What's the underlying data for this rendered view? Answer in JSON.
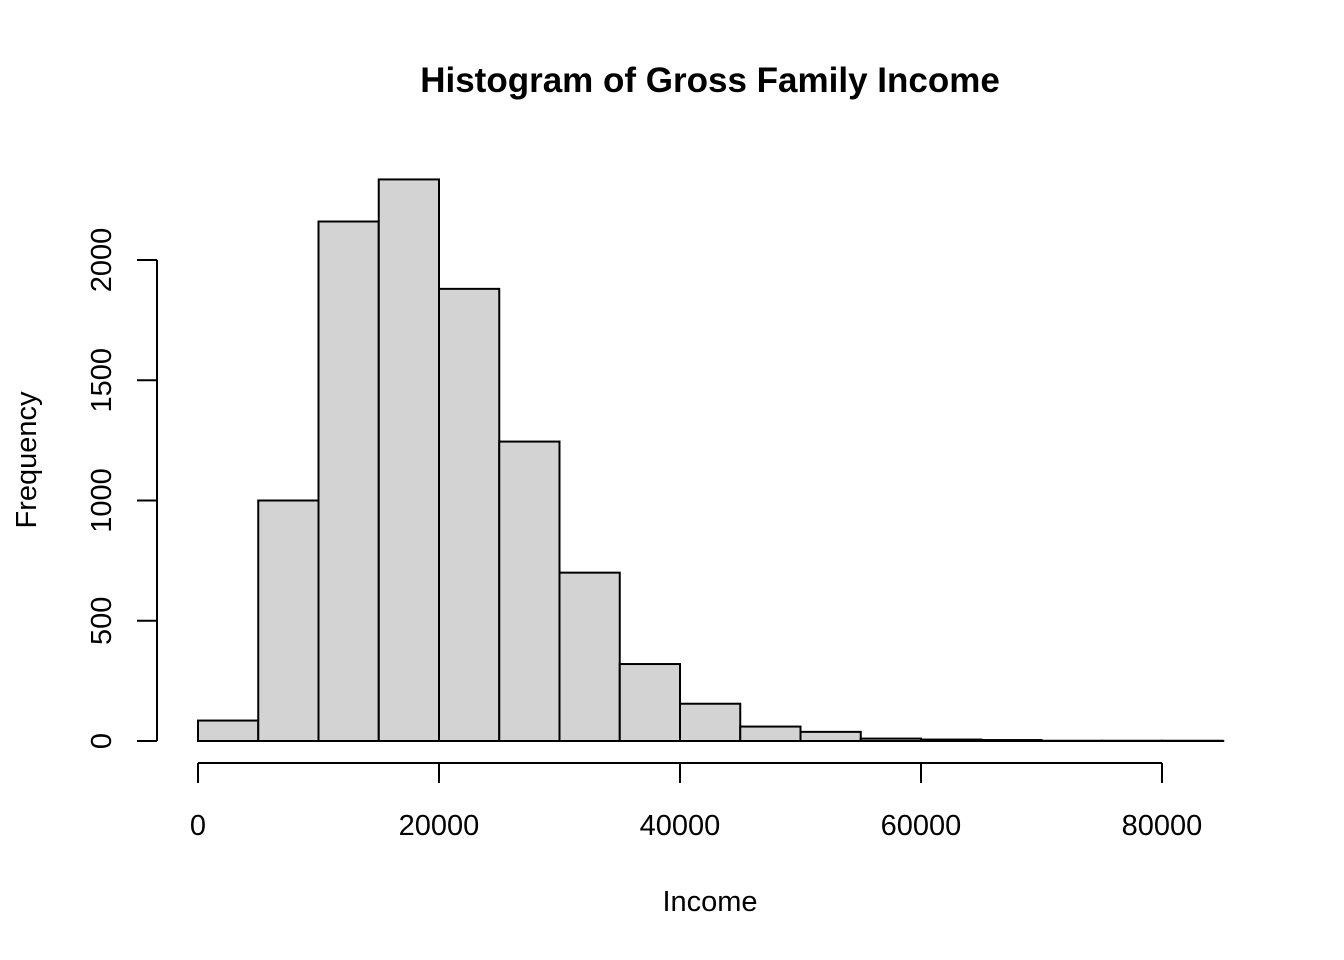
{
  "chart_data": {
    "type": "bar",
    "title": "Histogram of Gross Family Income",
    "xlabel": "Income",
    "ylabel": "Frequency",
    "bin_width": 5000,
    "bins": [
      {
        "start": 0,
        "end": 5000,
        "value": 85
      },
      {
        "start": 5000,
        "end": 10000,
        "value": 1000
      },
      {
        "start": 10000,
        "end": 15000,
        "value": 2160
      },
      {
        "start": 15000,
        "end": 20000,
        "value": 2335
      },
      {
        "start": 20000,
        "end": 25000,
        "value": 1880
      },
      {
        "start": 25000,
        "end": 30000,
        "value": 1245
      },
      {
        "start": 30000,
        "end": 35000,
        "value": 700
      },
      {
        "start": 35000,
        "end": 40000,
        "value": 320
      },
      {
        "start": 40000,
        "end": 45000,
        "value": 155
      },
      {
        "start": 45000,
        "end": 50000,
        "value": 60
      },
      {
        "start": 50000,
        "end": 55000,
        "value": 38
      },
      {
        "start": 55000,
        "end": 60000,
        "value": 10
      },
      {
        "start": 60000,
        "end": 65000,
        "value": 6
      },
      {
        "start": 65000,
        "end": 70000,
        "value": 4
      },
      {
        "start": 70000,
        "end": 75000,
        "value": 1
      },
      {
        "start": 75000,
        "end": 80000,
        "value": 1
      },
      {
        "start": 80000,
        "end": 85000,
        "value": 1
      }
    ],
    "xlim": [
      0,
      85000
    ],
    "ylim": [
      0,
      2335
    ],
    "x_ticks": [
      0,
      20000,
      40000,
      60000,
      80000
    ],
    "x_tick_labels": [
      "0",
      "20000",
      "40000",
      "60000",
      "80000"
    ],
    "y_ticks": [
      0,
      500,
      1000,
      1500,
      2000
    ],
    "y_tick_labels": [
      "0",
      "500",
      "1000",
      "1500",
      "2000"
    ],
    "bar_fill": "#d3d3d3",
    "bar_stroke": "#000000",
    "grid": false
  }
}
